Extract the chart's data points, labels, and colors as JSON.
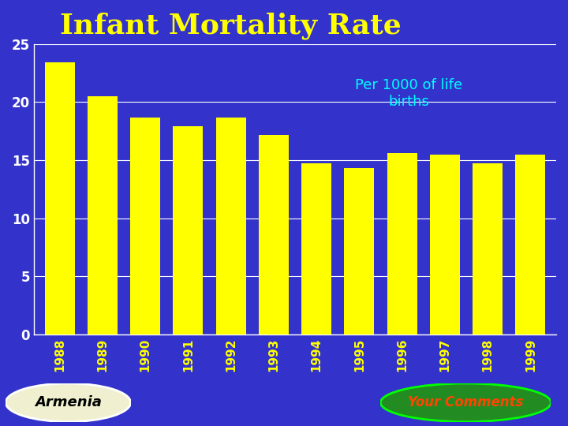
{
  "title": "Infant Mortality Rate",
  "subtitle": "Per 1000 of life\nbirths",
  "categories": [
    "1988",
    "1989",
    "1990",
    "1991",
    "1992",
    "1993",
    "1994",
    "1995",
    "1996",
    "1997",
    "1998",
    "1999"
  ],
  "values": [
    23.4,
    20.5,
    18.7,
    17.9,
    18.7,
    17.2,
    14.7,
    14.3,
    15.6,
    15.5,
    14.7,
    15.5
  ],
  "bar_color": "#FFFF00",
  "background_color": "#3333CC",
  "axes_background_color": "#3333CC",
  "title_color": "#FFFF00",
  "subtitle_color": "#00FFFF",
  "tick_label_color": "#FFFF00",
  "ytick_label_color": "#FFFFFF",
  "gridline_color": "#FFFFFF",
  "ylim": [
    0,
    25
  ],
  "yticks": [
    0,
    5,
    10,
    15,
    20,
    25
  ],
  "armenia_label": "Armenia",
  "comments_label": "Your Comments",
  "armenia_bg": "#F0F0D0",
  "comments_bg": "#228B22",
  "comments_text_color": "#FF4500",
  "armenia_text_color": "#000000"
}
